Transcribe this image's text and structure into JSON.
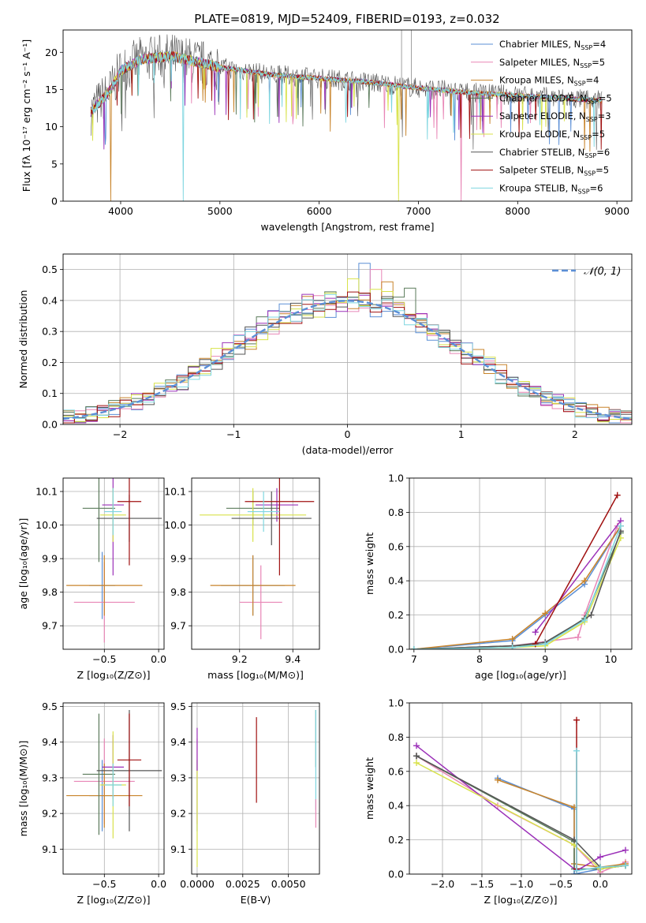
{
  "figure_title": "PLATE=0819, MJD=52409, FIBERID=0193, z=0.032",
  "colors": [
    "#5b8fd6",
    "#e886b6",
    "#c8842b",
    "#5a7a5a",
    "#9b30b8",
    "#d8e24a",
    "#555555",
    "#a01010",
    "#7fd6e0"
  ],
  "legend_labels": [
    {
      "pre": "Chabrier MILES, N",
      "sub": "SSP",
      "post": "=4"
    },
    {
      "pre": "Salpeter MILES, N",
      "sub": "SSP",
      "post": "=5"
    },
    {
      "pre": "Kroupa MILES, N",
      "sub": "SSP",
      "post": "=4"
    },
    {
      "pre": "Chabrier ELODIE, N",
      "sub": "SSP",
      "post": "=5"
    },
    {
      "pre": "Salpeter ELODIE, N",
      "sub": "SSP",
      "post": "=3"
    },
    {
      "pre": "Kroupa ELODIE, N",
      "sub": "SSP",
      "post": "=5"
    },
    {
      "pre": "Chabrier STELIB, N",
      "sub": "SSP",
      "post": "=6"
    },
    {
      "pre": "Salpeter STELIB, N",
      "sub": "SSP",
      "post": "=5"
    },
    {
      "pre": "Kroupa STELIB, N",
      "sub": "SSP",
      "post": "=6"
    }
  ],
  "chart_data": [
    {
      "id": "spectrum",
      "type": "line",
      "xlabel": "wavelength [Angstrom, rest frame]",
      "ylabel": "Flux [fλ 10⁻¹⁷ erg cm⁻² s⁻¹ A⁻¹]",
      "xlim": [
        3420,
        9150
      ],
      "ylim": [
        0,
        23
      ],
      "xticks": [
        4000,
        5000,
        6000,
        7000,
        8000,
        9000
      ],
      "yticks": [
        0,
        5,
        10,
        15,
        20
      ],
      "x_range_data": [
        3700,
        8850
      ],
      "continuum": [
        [
          3700,
          12
        ],
        [
          3900,
          15
        ],
        [
          4000,
          17.5
        ],
        [
          4200,
          19
        ],
        [
          4500,
          19.5
        ],
        [
          5000,
          18
        ],
        [
          5500,
          17
        ],
        [
          6000,
          16.5
        ],
        [
          6500,
          16
        ],
        [
          7000,
          15.2
        ],
        [
          7500,
          14.6
        ],
        [
          8000,
          14.2
        ],
        [
          8500,
          13.8
        ],
        [
          8850,
          13.5
        ]
      ],
      "dips": [
        {
          "series": 2,
          "x": 3900,
          "y": 0
        },
        {
          "series": 8,
          "x": 4630,
          "y": 0
        },
        {
          "series": 5,
          "x": 6800,
          "y": 0
        },
        {
          "series": 1,
          "x": 7430,
          "y": 0
        }
      ],
      "spikes": [
        {
          "x": 6830,
          "y": 23
        },
        {
          "x": 6930,
          "y": 23
        }
      ]
    },
    {
      "id": "residuals",
      "type": "histogram",
      "xlabel": "(data-model)/error",
      "ylabel": "Normed distribution",
      "xlim": [
        -2.5,
        2.5
      ],
      "ylim": [
        0,
        0.55
      ],
      "xticks": [
        -2,
        -1,
        0,
        1,
        2
      ],
      "yticks": [
        0,
        0.1,
        0.2,
        0.3,
        0.4,
        0.5
      ],
      "bin_width": 0.1,
      "normal_label": "𝒩(0, 1)",
      "peak_values": [
        0.52,
        0.5,
        0.46,
        0.44,
        0.42,
        0.47
      ]
    },
    {
      "id": "age_vs_Z",
      "type": "errorbar",
      "xlabel": "Z [log₁₀(Z/Z⊙)]",
      "ylabel": "age [log₁₀(age/yr)]",
      "xlim": [
        -0.88,
        0.05
      ],
      "ylim": [
        9.63,
        10.14
      ],
      "xticks": [
        -0.5,
        0.0
      ],
      "yticks": [
        9.7,
        9.8,
        9.9,
        10.0,
        10.1
      ],
      "points": [
        {
          "series": 0,
          "x": -0.52,
          "y": 9.82,
          "xerr": 0.12,
          "yerr": 0.1
        },
        {
          "series": 1,
          "x": -0.5,
          "y": 9.77,
          "xerr": 0.28,
          "yerr": 0.12
        },
        {
          "series": 2,
          "x": -0.5,
          "y": 9.82,
          "xerr": 0.35,
          "yerr": 0.09
        },
        {
          "series": 3,
          "x": -0.55,
          "y": 10.05,
          "xerr": 0.15,
          "yerr": 0.16
        },
        {
          "series": 4,
          "x": -0.42,
          "y": 10.06,
          "xerr": 0.1,
          "yerr": 0.21
        },
        {
          "series": 5,
          "x": -0.42,
          "y": 10.03,
          "xerr": 0.12,
          "yerr": 0.08
        },
        {
          "series": 6,
          "x": -0.27,
          "y": 10.02,
          "xerr": 0.3,
          "yerr": 0.07
        },
        {
          "series": 7,
          "x": -0.27,
          "y": 10.07,
          "xerr": 0.11,
          "yerr": 0.19
        },
        {
          "series": 8,
          "x": -0.42,
          "y": 10.04,
          "xerr": 0.08,
          "yerr": 0.07
        }
      ]
    },
    {
      "id": "age_vs_mass",
      "type": "errorbar",
      "xlabel": "mass [log₁₀(M/M⊙)]",
      "ylabel": "",
      "xlim": [
        9.02,
        9.5
      ],
      "ylim": [
        9.63,
        10.14
      ],
      "xticks": [
        9.2,
        9.4
      ],
      "yticks": [
        9.7,
        9.8,
        9.9,
        10.0,
        10.1
      ],
      "points": [
        {
          "series": 0,
          "x": 9.25,
          "y": 9.82,
          "xerr": 0.12,
          "yerr": 0.09
        },
        {
          "series": 1,
          "x": 9.28,
          "y": 9.77,
          "xerr": 0.08,
          "yerr": 0.11
        },
        {
          "series": 2,
          "x": 9.25,
          "y": 9.82,
          "xerr": 0.16,
          "yerr": 0.09
        },
        {
          "series": 3,
          "x": 9.25,
          "y": 10.05,
          "xerr": 0.1,
          "yerr": 0.05
        },
        {
          "series": 4,
          "x": 9.34,
          "y": 10.06,
          "xerr": 0.08,
          "yerr": 0.05
        },
        {
          "series": 5,
          "x": 9.25,
          "y": 10.03,
          "xerr": 0.2,
          "yerr": 0.08
        },
        {
          "series": 6,
          "x": 9.32,
          "y": 10.02,
          "xerr": 0.15,
          "yerr": 0.08
        },
        {
          "series": 7,
          "x": 9.35,
          "y": 10.07,
          "xerr": 0.13,
          "yerr": 0.22
        },
        {
          "series": 8,
          "x": 9.29,
          "y": 10.04,
          "xerr": 0.06,
          "yerr": 0.06
        }
      ]
    },
    {
      "id": "weight_vs_age",
      "type": "line",
      "xlabel": "age [log₁₀(age/yr)]",
      "ylabel": "mass weight",
      "xlim": [
        6.93,
        10.32
      ],
      "ylim": [
        0,
        1
      ],
      "xticks": [
        7,
        8,
        9,
        10
      ],
      "yticks": [
        0,
        0.2,
        0.4,
        0.6,
        0.8,
        1.0
      ],
      "series": [
        {
          "series": 0,
          "x": [
            7.0,
            8.5,
            9.0,
            9.6,
            10.15
          ],
          "y": [
            0.0,
            0.05,
            0.2,
            0.38,
            0.72
          ]
        },
        {
          "series": 1,
          "x": [
            7.0,
            8.5,
            9.5,
            9.6,
            10.1
          ],
          "y": [
            0.0,
            0.02,
            0.07,
            0.2,
            0.72
          ]
        },
        {
          "series": 2,
          "x": [
            7.0,
            8.5,
            9.0,
            9.6,
            10.15
          ],
          "y": [
            0.0,
            0.06,
            0.21,
            0.4,
            0.72
          ]
        },
        {
          "series": 3,
          "x": [
            7.0,
            8.5,
            9.0,
            9.6,
            10.15
          ],
          "y": [
            0.0,
            0.02,
            0.03,
            0.18,
            0.68
          ]
        },
        {
          "series": 4,
          "x": [
            8.85,
            10.15
          ],
          "y": [
            0.1,
            0.75
          ]
        },
        {
          "series": 5,
          "x": [
            7.0,
            8.5,
            9.0,
            9.6,
            10.15
          ],
          "y": [
            0.0,
            0.01,
            0.02,
            0.16,
            0.65
          ]
        },
        {
          "series": 6,
          "x": [
            7.0,
            8.5,
            9.0,
            9.7,
            10.15
          ],
          "y": [
            0.0,
            0.02,
            0.04,
            0.2,
            0.69
          ]
        },
        {
          "series": 7,
          "x": [
            8.85,
            10.1
          ],
          "y": [
            0.03,
            0.9
          ]
        },
        {
          "series": 8,
          "x": [
            7.0,
            8.5,
            9.0,
            9.6,
            10.15
          ],
          "y": [
            0.0,
            0.01,
            0.03,
            0.17,
            0.72
          ]
        }
      ]
    },
    {
      "id": "mass_vs_Z",
      "type": "errorbar",
      "xlabel": "Z [log₁₀(Z/Z⊙)]",
      "ylabel": "mass [log₁₀(M/M⊙)]",
      "xlim": [
        -0.88,
        0.05
      ],
      "ylim": [
        9.03,
        9.51
      ],
      "xticks": [
        -0.5,
        0.0
      ],
      "yticks": [
        9.1,
        9.2,
        9.3,
        9.4,
        9.5
      ],
      "points": [
        {
          "series": 0,
          "x": -0.52,
          "y": 9.25,
          "xerr": 0.12,
          "yerr": 0.1
        },
        {
          "series": 1,
          "x": -0.5,
          "y": 9.29,
          "xerr": 0.28,
          "yerr": 0.12
        },
        {
          "series": 2,
          "x": -0.5,
          "y": 9.25,
          "xerr": 0.35,
          "yerr": 0.09
        },
        {
          "series": 3,
          "x": -0.55,
          "y": 9.31,
          "xerr": 0.15,
          "yerr": 0.17
        },
        {
          "series": 4,
          "x": -0.42,
          "y": 9.33,
          "xerr": 0.1,
          "yerr": 0.09
        },
        {
          "series": 5,
          "x": -0.42,
          "y": 9.28,
          "xerr": 0.12,
          "yerr": 0.15
        },
        {
          "series": 6,
          "x": -0.27,
          "y": 9.32,
          "xerr": 0.3,
          "yerr": 0.17
        },
        {
          "series": 7,
          "x": -0.27,
          "y": 9.35,
          "xerr": 0.11,
          "yerr": 0.13
        },
        {
          "series": 8,
          "x": -0.42,
          "y": 9.28,
          "xerr": 0.08,
          "yerr": 0.06
        }
      ]
    },
    {
      "id": "mass_vs_ebv",
      "type": "errorbar",
      "xlabel": "E(B-V)",
      "ylabel": "",
      "xlim": [
        -0.0003,
        0.0067
      ],
      "ylim": [
        9.03,
        9.51
      ],
      "xtick_values": [
        0.0,
        0.0025,
        0.005
      ],
      "xtick_labels": [
        "0.0000",
        "0.0025",
        "0.0050"
      ],
      "yticks": [
        9.1,
        9.2,
        9.3,
        9.4,
        9.5
      ],
      "points": [
        {
          "series": 0,
          "x": 0.0,
          "y": 9.25,
          "xerr": 0,
          "yerr": 0.1
        },
        {
          "series": 1,
          "x": 0.0,
          "y": 9.29,
          "xerr": 0,
          "yerr": 0.12
        },
        {
          "series": 5,
          "x": 0.0,
          "y": 9.2,
          "xerr": 0,
          "yerr": 0.15
        },
        {
          "series": 4,
          "x": 0.0,
          "y": 9.38,
          "xerr": 0,
          "yerr": 0.06
        },
        {
          "series": 7,
          "x": 0.00325,
          "y": 9.35,
          "xerr": 0,
          "yerr": 0.12
        },
        {
          "series": 3,
          "x": 0.0065,
          "y": 9.41,
          "xerr": 0,
          "yerr": 0.08
        },
        {
          "series": 8,
          "x": 0.0065,
          "y": 9.35,
          "xerr": 0,
          "yerr": 0.14
        },
        {
          "series": 1,
          "x": 0.0065,
          "y": 9.2,
          "xerr": 0,
          "yerr": 0.04
        }
      ]
    },
    {
      "id": "weight_vs_Z",
      "type": "line",
      "xlabel": "Z [log₁₀(Z/Z⊙)]",
      "ylabel": "mass weight",
      "xlim": [
        -2.42,
        0.4
      ],
      "ylim": [
        0,
        1
      ],
      "xticks": [
        -2.0,
        -1.5,
        -1.0,
        -0.5,
        0.0
      ],
      "yticks": [
        0,
        0.2,
        0.4,
        0.6,
        0.8,
        1.0
      ],
      "series": [
        {
          "series": 0,
          "x": [
            -1.3,
            -0.33,
            -0.33,
            0.0,
            0.32
          ],
          "y": [
            0.56,
            0.38,
            0.0,
            0.03,
            0.05
          ]
        },
        {
          "series": 1,
          "x": [
            -2.33,
            -1.3,
            -0.33,
            0.0,
            0.32
          ],
          "y": [
            0.69,
            0.4,
            0.17,
            0.01,
            0.07
          ]
        },
        {
          "series": 2,
          "x": [
            -1.3,
            -0.33,
            -0.33,
            0.0,
            0.32
          ],
          "y": [
            0.55,
            0.39,
            0.06,
            0.04,
            0.06
          ]
        },
        {
          "series": 3,
          "x": [
            -2.33,
            -0.33,
            -0.33,
            0.0,
            0.32
          ],
          "y": [
            0.69,
            0.19,
            0.03,
            0.03,
            0.05
          ]
        },
        {
          "series": 4,
          "x": [
            -2.33,
            -0.3,
            0.0,
            0.32
          ],
          "y": [
            0.75,
            0.02,
            0.1,
            0.14
          ]
        },
        {
          "series": 5,
          "x": [
            -2.33,
            -0.33,
            0.0,
            0.32
          ],
          "y": [
            0.65,
            0.17,
            0.03,
            0.05
          ]
        },
        {
          "series": 6,
          "x": [
            -2.33,
            -0.33,
            0.0,
            0.32
          ],
          "y": [
            0.69,
            0.2,
            0.04,
            0.05
          ]
        },
        {
          "series": 7,
          "x": [
            -0.3,
            -0.3
          ],
          "y": [
            0.9,
            0.03
          ]
        },
        {
          "series": 8,
          "x": [
            -0.3,
            -0.3,
            0.0,
            0.32
          ],
          "y": [
            0.72,
            0.02,
            0.04,
            0.05
          ]
        }
      ]
    }
  ]
}
